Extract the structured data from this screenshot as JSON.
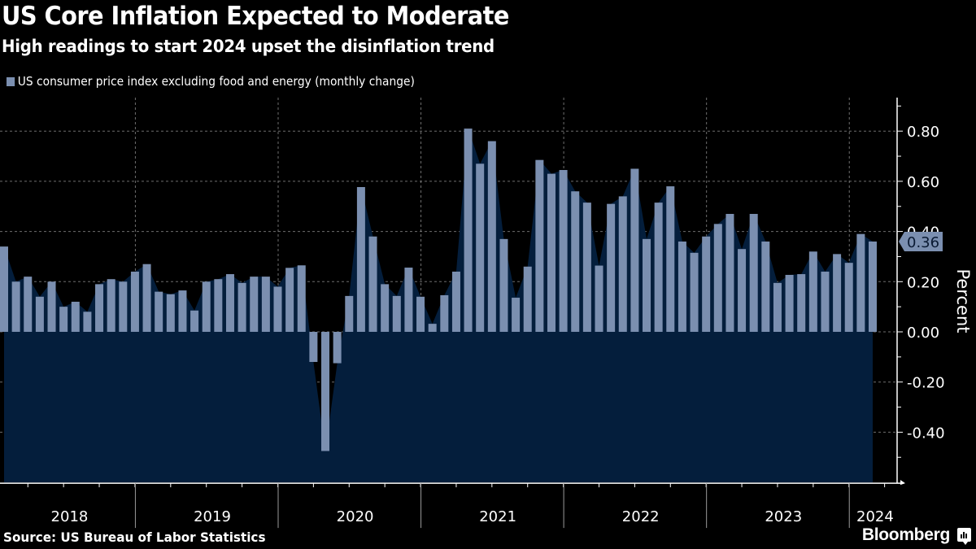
{
  "header": {
    "title": "US Core Inflation Expected to Moderate",
    "subtitle": "High readings to start 2024 upset the disinflation trend"
  },
  "legend": {
    "label": "US consumer price index excluding food and energy (monthly change)",
    "color": "#7b8fb0"
  },
  "footer": {
    "source": "Source: US Bureau of Labor Statistics",
    "brand": "Bloomberg"
  },
  "colors": {
    "background": "#000000",
    "bar": "#7b8fb0",
    "area": "#041e3c",
    "grid": "#8a8a8a",
    "axis": "#ffffff"
  },
  "chart_data": {
    "type": "bar",
    "title": "US Core Inflation Expected to Moderate",
    "subtitle": "High readings to start 2024 upset the disinflation trend",
    "xlabel": "",
    "ylabel": "Percent",
    "ylim": [
      -0.6,
      0.93
    ],
    "yticks": [
      0.8,
      0.6,
      0.4,
      0.2,
      0.0,
      -0.2,
      -0.4
    ],
    "ytick_labels": [
      "0.80",
      "0.60",
      "0.40",
      "0.20",
      "0.00",
      "-0.20",
      "-0.40"
    ],
    "grid": true,
    "legend_position": "top-left",
    "x_start": "2018-01",
    "x_end": "2024-02",
    "frequency": "monthly",
    "year_labels": [
      "2018",
      "2019",
      "2020",
      "2021",
      "2022",
      "2023",
      "2024"
    ],
    "last_value_label": "0.36",
    "series": [
      {
        "name": "US consumer price index excluding food and energy (monthly change)",
        "categories": [
          "2018-01",
          "2018-02",
          "2018-03",
          "2018-04",
          "2018-05",
          "2018-06",
          "2018-07",
          "2018-08",
          "2018-09",
          "2018-10",
          "2018-11",
          "2018-12",
          "2019-01",
          "2019-02",
          "2019-03",
          "2019-04",
          "2019-05",
          "2019-06",
          "2019-07",
          "2019-08",
          "2019-09",
          "2019-10",
          "2019-11",
          "2019-12",
          "2020-01",
          "2020-02",
          "2020-03",
          "2020-04",
          "2020-05",
          "2020-06",
          "2020-07",
          "2020-08",
          "2020-09",
          "2020-10",
          "2020-11",
          "2020-12",
          "2021-01",
          "2021-02",
          "2021-03",
          "2021-04",
          "2021-05",
          "2021-06",
          "2021-07",
          "2021-08",
          "2021-09",
          "2021-10",
          "2021-11",
          "2021-12",
          "2022-01",
          "2022-02",
          "2022-03",
          "2022-04",
          "2022-05",
          "2022-06",
          "2022-07",
          "2022-08",
          "2022-09",
          "2022-10",
          "2022-11",
          "2022-12",
          "2023-01",
          "2023-02",
          "2023-03",
          "2023-04",
          "2023-05",
          "2023-06",
          "2023-07",
          "2023-08",
          "2023-09",
          "2023-10",
          "2023-11",
          "2023-12",
          "2024-01",
          "2024-02"
        ],
        "values": [
          0.34,
          0.2,
          0.22,
          0.14,
          0.2,
          0.1,
          0.12,
          0.08,
          0.19,
          0.21,
          0.2,
          0.24,
          0.27,
          0.16,
          0.15,
          0.165,
          0.085,
          0.2,
          0.21,
          0.23,
          0.195,
          0.22,
          0.22,
          0.18,
          0.255,
          0.265,
          -0.12,
          -0.475,
          -0.125,
          0.143,
          0.577,
          0.38,
          0.19,
          0.143,
          0.256,
          0.14,
          0.032,
          0.146,
          0.24,
          0.81,
          0.67,
          0.76,
          0.37,
          0.136,
          0.26,
          0.685,
          0.63,
          0.645,
          0.56,
          0.515,
          0.264,
          0.51,
          0.54,
          0.65,
          0.37,
          0.515,
          0.58,
          0.36,
          0.315,
          0.38,
          0.43,
          0.47,
          0.33,
          0.47,
          0.36,
          0.195,
          0.227,
          0.23,
          0.32,
          0.24,
          0.31,
          0.275,
          0.39,
          0.36
        ]
      }
    ]
  }
}
